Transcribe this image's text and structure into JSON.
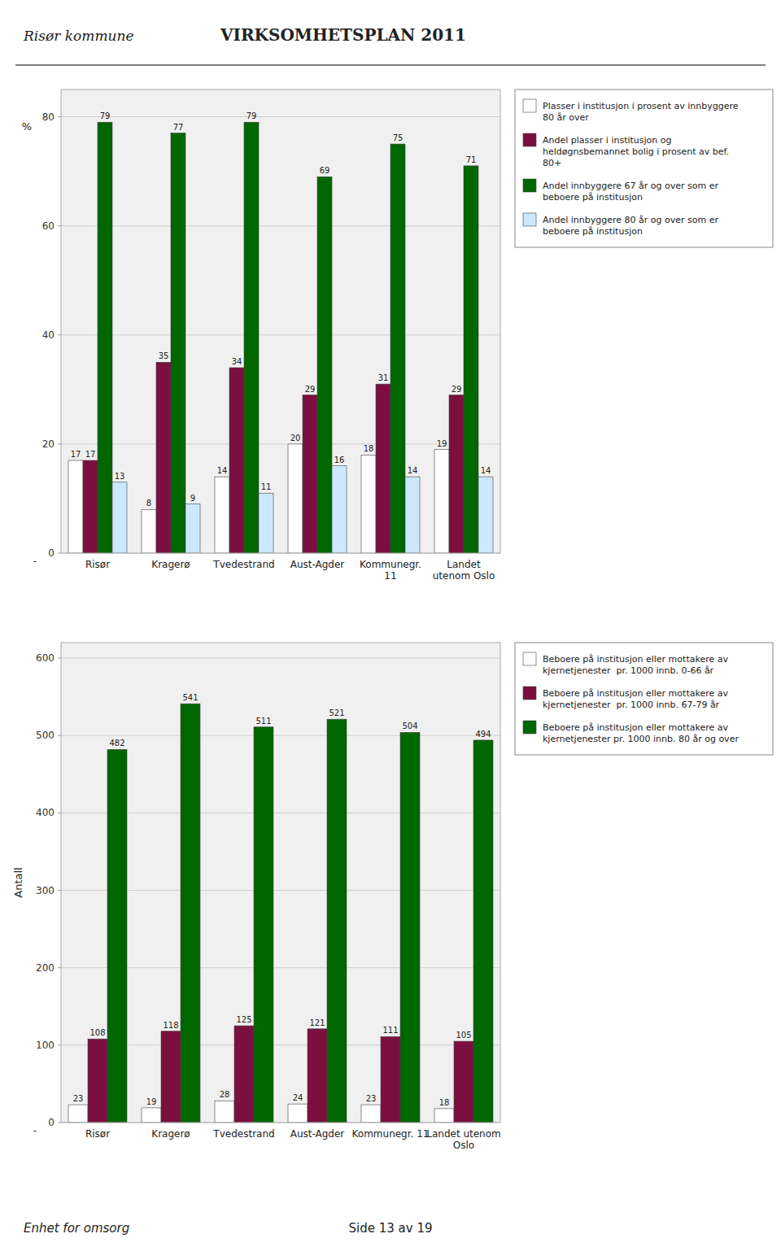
{
  "chart_data": [
    {
      "type": "bar",
      "title": "VIRKSOMHETSPLAN 2011",
      "subtitle": "Risør kommune",
      "annotations": [
        "-"
      ],
      "categories": [
        "Risør",
        "Kragerø",
        "Tvedestrand",
        "Aust-Agder",
        "Kommunegr.\n11",
        "Landet\nutenom Oslo"
      ],
      "ylabel": "%",
      "ylim": [
        0,
        85
      ],
      "yticks": [
        0,
        20,
        40,
        60,
        80
      ],
      "grid": true,
      "legend": "right",
      "data_labels": true,
      "series": [
        {
          "name": "Plasser i institusjon i prosent av innbyggere\n80 år over",
          "color": "#ffffff",
          "values": [
            17,
            8,
            14,
            20,
            18,
            19
          ]
        },
        {
          "name": "Andel plasser i institusjon og\nheldøgnsbemannet bolig i prosent av bef.\n80+",
          "color": "#7b1040",
          "values": [
            17,
            35,
            34,
            29,
            31,
            29
          ]
        },
        {
          "name": "Andel innbyggere 67 år og over som er\nbeboere på institusjon",
          "color": "#006600",
          "values": [
            79,
            77,
            79,
            69,
            75,
            71
          ]
        },
        {
          "name": "Andel innbyggere 80 år og over som er\nbeboere på institusjon",
          "color": "#cce8ff",
          "values": [
            13,
            9,
            11,
            16,
            14,
            14
          ]
        }
      ]
    },
    {
      "type": "bar",
      "annotations": [
        "-",
        "Enhet for omsorg",
        "Side 13 av 19"
      ],
      "categories": [
        "Risør",
        "Kragerø",
        "Tvedestrand",
        "Aust-Agder",
        "Kommunegr. 11",
        "Landet utenom\nOslo"
      ],
      "ylabel": "Antall",
      "ylim": [
        0,
        620
      ],
      "yticks": [
        0,
        100,
        200,
        300,
        400,
        500,
        600
      ],
      "grid": true,
      "legend": "right",
      "data_labels": true,
      "series": [
        {
          "name": "Beboere på institusjon eller mottakere av\nkjernetjenester  pr. 1000 innb. 0-66 år",
          "color": "#ffffff",
          "values": [
            23,
            19,
            28,
            24,
            23,
            18
          ]
        },
        {
          "name": "Beboere på institusjon eller mottakere av\nkjernetjenester  pr. 1000 innb. 67-79 år",
          "color": "#7b1040",
          "values": [
            108,
            118,
            125,
            121,
            111,
            105
          ]
        },
        {
          "name": "Beboere på institusjon eller mottakere av\nkjernetjenester pr. 1000 innb. 80 år og over",
          "color": "#006600",
          "values": [
            482,
            541,
            511,
            521,
            504,
            494
          ]
        }
      ]
    }
  ]
}
